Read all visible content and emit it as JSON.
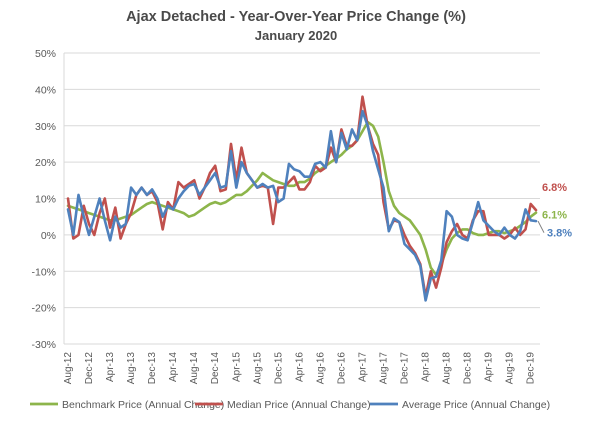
{
  "chart_data": {
    "type": "line",
    "title": "Ajax Detached - Year-Over-Year Price Change (%)",
    "subtitle": "January 2020",
    "ylim": [
      -30,
      50
    ],
    "y_ticks": [
      "50%",
      "40%",
      "30%",
      "20%",
      "10%",
      "0%",
      "-10%",
      "-20%",
      "-30%"
    ],
    "y_tick_values": [
      50,
      40,
      30,
      20,
      10,
      0,
      -10,
      -20,
      -30
    ],
    "x_tick_labels": [
      "Aug-12",
      "Dec-12",
      "Apr-13",
      "Aug-13",
      "Dec-13",
      "Apr-14",
      "Aug-14",
      "Dec-14",
      "Apr-15",
      "Aug-15",
      "Dec-15",
      "Apr-16",
      "Aug-16",
      "Dec-16",
      "Apr-17",
      "Aug-17",
      "Dec-17",
      "Apr-18",
      "Aug-18",
      "Dec-18",
      "Apr-19",
      "Aug-19",
      "Dec-19"
    ],
    "x": [
      "Aug-12",
      "Sep-12",
      "Oct-12",
      "Nov-12",
      "Dec-12",
      "Jan-13",
      "Feb-13",
      "Mar-13",
      "Apr-13",
      "May-13",
      "Jun-13",
      "Jul-13",
      "Aug-13",
      "Sep-13",
      "Oct-13",
      "Nov-13",
      "Dec-13",
      "Jan-14",
      "Feb-14",
      "Mar-14",
      "Apr-14",
      "May-14",
      "Jun-14",
      "Jul-14",
      "Aug-14",
      "Sep-14",
      "Oct-14",
      "Nov-14",
      "Dec-14",
      "Jan-15",
      "Feb-15",
      "Mar-15",
      "Apr-15",
      "May-15",
      "Jun-15",
      "Jul-15",
      "Aug-15",
      "Sep-15",
      "Oct-15",
      "Nov-15",
      "Dec-15",
      "Jan-16",
      "Feb-16",
      "Mar-16",
      "Apr-16",
      "May-16",
      "Jun-16",
      "Jul-16",
      "Aug-16",
      "Sep-16",
      "Oct-16",
      "Nov-16",
      "Dec-16",
      "Jan-17",
      "Feb-17",
      "Mar-17",
      "Apr-17",
      "May-17",
      "Jun-17",
      "Jul-17",
      "Aug-17",
      "Sep-17",
      "Oct-17",
      "Nov-17",
      "Dec-17",
      "Jan-18",
      "Feb-18",
      "Mar-18",
      "Apr-18",
      "May-18",
      "Jun-18",
      "Jul-18",
      "Aug-18",
      "Sep-18",
      "Oct-18",
      "Nov-18",
      "Dec-18",
      "Jan-19",
      "Feb-19",
      "Mar-19",
      "Apr-19",
      "May-19",
      "Jun-19",
      "Jul-19",
      "Aug-19",
      "Sep-19",
      "Oct-19",
      "Nov-19",
      "Dec-19",
      "Jan-20"
    ],
    "series": [
      {
        "name": "Benchmark Price (Annual Change)",
        "color": "#8db54b",
        "values": [
          8,
          7.5,
          7,
          6.5,
          6,
          5.5,
          5,
          4.5,
          4,
          4,
          4.5,
          5,
          5.5,
          6.5,
          7.5,
          8.5,
          9,
          8.5,
          8,
          7.5,
          7,
          6.5,
          6,
          5,
          5.5,
          6.5,
          7.5,
          8.5,
          9,
          8.5,
          9,
          10,
          11,
          11,
          12,
          13.5,
          15,
          17,
          16,
          15,
          14.5,
          14,
          13.5,
          13.5,
          14.5,
          14.5,
          15.5,
          17,
          18,
          19,
          20,
          21,
          22,
          23.5,
          24.5,
          26,
          28.5,
          31,
          30,
          27,
          20,
          12,
          8,
          6,
          5,
          4,
          2,
          0,
          -4,
          -9,
          -11,
          -8,
          -4,
          -1,
          0.5,
          1.5,
          1.5,
          0.5,
          0,
          0,
          0.5,
          1,
          1,
          0.5,
          1,
          1.5,
          2.5,
          3.5,
          5,
          6.1
        ]
      },
      {
        "name": "Median Price (Annual Change)",
        "color": "#c0504d",
        "values": [
          10,
          -1,
          0,
          8,
          3,
          0,
          6,
          10,
          2,
          7.5,
          -1,
          3,
          6,
          11,
          13,
          11,
          12,
          9,
          1.5,
          9,
          7,
          14.5,
          13,
          14,
          15,
          10,
          13,
          17,
          19,
          12,
          12.5,
          25,
          15,
          24,
          17,
          15,
          13,
          13.5,
          13,
          3,
          13,
          13,
          14.5,
          16,
          12.5,
          12.5,
          14.5,
          19,
          17.5,
          18.5,
          24,
          20,
          29,
          24.5,
          24.5,
          26,
          38,
          30,
          25,
          22,
          9,
          1.5,
          4,
          3.5,
          0,
          -3,
          -5,
          -8,
          -17,
          -10,
          -14.5,
          -9,
          -2,
          1,
          3,
          0,
          -1,
          4,
          6.5,
          6.5,
          0,
          0,
          0,
          -1,
          0,
          2,
          0,
          1.5,
          8.5,
          6.8
        ]
      },
      {
        "name": "Average Price (Annual Change)",
        "color": "#4f81bd",
        "values": [
          7,
          0,
          11,
          5,
          0,
          5,
          10,
          4,
          -1.5,
          5,
          2,
          3,
          13,
          11,
          13,
          11,
          12.5,
          10,
          5,
          8,
          7,
          10,
          12,
          13.5,
          14,
          11,
          13,
          15,
          17,
          13,
          13.5,
          23,
          13,
          20,
          17,
          15,
          13,
          14,
          13,
          13.5,
          9,
          10,
          19.5,
          18,
          17.5,
          16,
          16,
          19.5,
          20,
          18.5,
          28.5,
          20,
          28,
          23.5,
          29,
          26,
          34,
          30,
          23,
          18,
          13,
          1,
          4.5,
          3.5,
          -2.5,
          -4,
          -5.5,
          -8.5,
          -18,
          -12,
          -11.5,
          -7,
          6.5,
          5,
          0,
          -1,
          -1.5,
          3.5,
          9,
          4,
          2.5,
          1,
          0,
          2,
          0,
          -1,
          1,
          7,
          4,
          3.8
        ]
      }
    ],
    "end_labels": [
      {
        "text": "6.8%",
        "color": "#c0504d"
      },
      {
        "text": "6.1%",
        "color": "#8db54b"
      },
      {
        "text": "3.8%",
        "color": "#4f81bd"
      }
    ],
    "grid": true,
    "legend_placement": "bottom"
  }
}
